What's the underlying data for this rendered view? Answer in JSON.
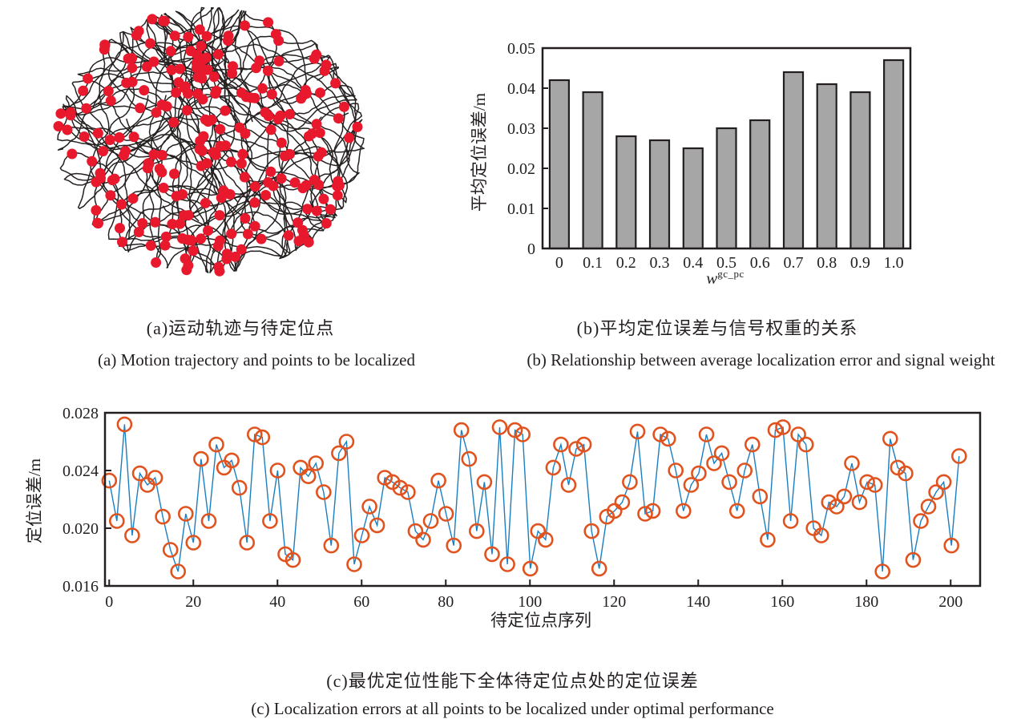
{
  "figure": {
    "background": "#ffffff",
    "ink_color": "#231f20"
  },
  "captions": {
    "a_zh": "(a)运动轨迹与待定位点",
    "a_en": "(a) Motion trajectory and points to be localized",
    "b_zh": "(b)平均定位误差与信号权重的关系",
    "b_en": "(b) Relationship between average localization error and signal weight",
    "c_zh": "(c)最优定位性能下全体待定位点处的定位误差",
    "c_en": "(c) Localization errors at all points to be localized under optimal performance"
  },
  "chart_data": [
    {
      "id": "trajectory",
      "type": "scatter",
      "title": "",
      "description": "Dense random motion trajectory (black curves) filling a circular arena, with red dots marking the points to be localized",
      "trajectory_color": "#262121",
      "point_color": "#e8182d",
      "generator": {
        "seed": 11,
        "walks": 15,
        "steps": 300,
        "step": 6.0,
        "turn": 0.85,
        "cx": 208,
        "cy": 175,
        "rx": 192,
        "ry": 166,
        "dot_count": 235,
        "dot_radius": 6.5
      }
    },
    {
      "id": "bar",
      "type": "bar",
      "categories": [
        "0",
        "0.1",
        "0.2",
        "0.3",
        "0.4",
        "0.5",
        "0.6",
        "0.7",
        "0.8",
        "0.9",
        "1.0"
      ],
      "values": [
        0.042,
        0.039,
        0.028,
        0.027,
        0.025,
        0.03,
        0.032,
        0.044,
        0.041,
        0.039,
        0.047
      ],
      "title": "",
      "xlabel_base": "w",
      "xlabel_sup": "gc_pc",
      "ylabel": "平均定位误差/m",
      "ylim": [
        0,
        0.05
      ],
      "ytick_vals": [
        0,
        0.01,
        0.02,
        0.03,
        0.04,
        0.05
      ],
      "ytick_labels": [
        "0",
        "0.01",
        "0.02",
        "0.03",
        "0.04",
        "0.05"
      ],
      "grid": false,
      "bar_fill": "#a6a6a6",
      "bar_edge": "#231f20"
    },
    {
      "id": "line",
      "type": "line",
      "title": "",
      "xlabel": "待定位点序列",
      "ylabel": "定位误差/m",
      "ylim": [
        0.016,
        0.028
      ],
      "xlim": [
        -1,
        207
      ],
      "x_max": 202,
      "ytick_vals": [
        0.016,
        0.02,
        0.024,
        0.028
      ],
      "ytick_labels": [
        "0.016",
        "0.020",
        "0.024",
        "0.028"
      ],
      "xtick_vals": [
        0,
        20,
        40,
        60,
        80,
        100,
        120,
        140,
        160,
        180,
        200
      ],
      "xtick_labels": [
        "0",
        "20",
        "40",
        "60",
        "80",
        "100",
        "120",
        "140",
        "160",
        "180",
        "200"
      ],
      "grid": false,
      "line_color": "#1a7ec0",
      "marker_color": "#e0531f",
      "values": [
        0.0233,
        0.0205,
        0.0272,
        0.0195,
        0.0238,
        0.023,
        0.0235,
        0.0208,
        0.0185,
        0.017,
        0.021,
        0.019,
        0.0248,
        0.0205,
        0.0258,
        0.0242,
        0.0247,
        0.0228,
        0.019,
        0.0265,
        0.0263,
        0.0205,
        0.024,
        0.0182,
        0.0178,
        0.0242,
        0.0236,
        0.0245,
        0.0225,
        0.0188,
        0.0252,
        0.026,
        0.0175,
        0.0195,
        0.0215,
        0.0202,
        0.0235,
        0.0232,
        0.0228,
        0.0225,
        0.0198,
        0.0192,
        0.0205,
        0.0233,
        0.021,
        0.0188,
        0.0268,
        0.0248,
        0.0198,
        0.0232,
        0.0182,
        0.027,
        0.0175,
        0.0268,
        0.0265,
        0.0172,
        0.0198,
        0.0192,
        0.0242,
        0.0258,
        0.023,
        0.0255,
        0.0258,
        0.0198,
        0.0172,
        0.0208,
        0.0212,
        0.0218,
        0.0232,
        0.0267,
        0.021,
        0.0212,
        0.0265,
        0.0262,
        0.024,
        0.0212,
        0.023,
        0.0238,
        0.0265,
        0.0245,
        0.0252,
        0.0232,
        0.0212,
        0.024,
        0.0258,
        0.0222,
        0.0192,
        0.0268,
        0.027,
        0.0205,
        0.0265,
        0.0258,
        0.02,
        0.0195,
        0.0218,
        0.0215,
        0.0222,
        0.0245,
        0.0218,
        0.0232,
        0.023,
        0.017,
        0.0262,
        0.0242,
        0.0238,
        0.0178,
        0.0205,
        0.0215,
        0.0225,
        0.0232,
        0.0188,
        0.025
      ]
    }
  ]
}
